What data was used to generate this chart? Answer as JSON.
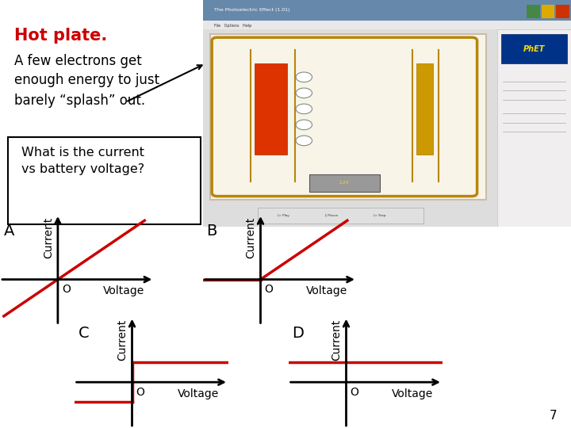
{
  "bg_color": "#ffffff",
  "title_text": "Hot plate.",
  "title_color": "#cc0000",
  "desc_text": "A few electrons get\nenough energy to just\nbarely “splash” out.",
  "desc_color": "#000000",
  "box_text": "What is the current\nvs battery voltage?",
  "slide_number": "7",
  "graph_line_color": "#cc0000",
  "graph_axis_color": "#000000",
  "label_A": "A",
  "label_B": "B",
  "label_C": "C",
  "label_D": "D",
  "xlabel": "Voltage",
  "ylabel": "Current",
  "origin_label": "O",
  "font_size_label": 13,
  "font_size_axis": 10,
  "graph_lw": 2.5,
  "axis_lw": 2.0
}
